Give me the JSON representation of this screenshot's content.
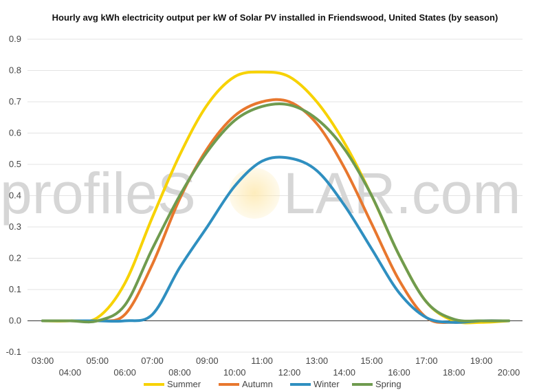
{
  "chart_data": {
    "type": "line",
    "title": "Hourly avg kWh electricity output per kW of Solar PV installed in Friendswood, United States (by season)",
    "xlabel": "",
    "ylabel": "",
    "x": [
      "03:00",
      "04:00",
      "05:00",
      "06:00",
      "07:00",
      "08:00",
      "09:00",
      "10:00",
      "11:00",
      "12:00",
      "13:00",
      "14:00",
      "15:00",
      "16:00",
      "17:00",
      "18:00",
      "19:00",
      "20:00"
    ],
    "ylim": [
      -0.1,
      0.9
    ],
    "yticks": [
      "-0.1",
      "0.0",
      "0.1",
      "0.2",
      "0.3",
      "0.4",
      "0.5",
      "0.6",
      "0.7",
      "0.8",
      "0.9"
    ],
    "grid": true,
    "legend_position": "bottom",
    "watermark": {
      "left": "profileS",
      "right": "LAR.com"
    },
    "series": [
      {
        "name": "Summer",
        "color": "#f7d201",
        "values": [
          0.0,
          0.0,
          0.01,
          0.12,
          0.33,
          0.53,
          0.69,
          0.78,
          0.795,
          0.78,
          0.7,
          0.57,
          0.4,
          0.21,
          0.06,
          0.0,
          -0.005,
          0.0
        ]
      },
      {
        "name": "Autumn",
        "color": "#e8772e",
        "values": [
          0.0,
          0.0,
          0.0,
          0.02,
          0.18,
          0.39,
          0.55,
          0.655,
          0.7,
          0.7,
          0.63,
          0.49,
          0.31,
          0.13,
          0.01,
          -0.005,
          0.0,
          0.0
        ]
      },
      {
        "name": "Winter",
        "color": "#2f8fc0",
        "values": [
          0.0,
          0.0,
          0.0,
          0.0,
          0.02,
          0.17,
          0.3,
          0.43,
          0.51,
          0.52,
          0.48,
          0.37,
          0.23,
          0.09,
          0.01,
          -0.005,
          0.0,
          0.0
        ]
      },
      {
        "name": "Spring",
        "color": "#6f9b4f",
        "values": [
          0.0,
          0.0,
          0.0,
          0.05,
          0.23,
          0.4,
          0.54,
          0.64,
          0.685,
          0.69,
          0.645,
          0.55,
          0.4,
          0.21,
          0.06,
          0.005,
          0.0,
          0.0
        ]
      }
    ]
  }
}
